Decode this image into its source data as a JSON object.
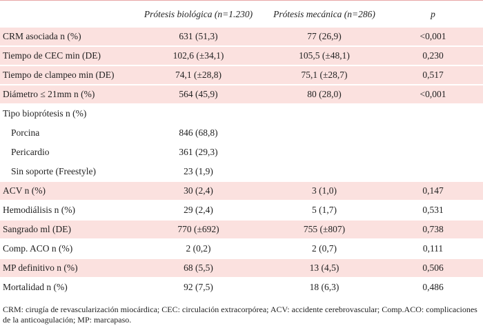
{
  "table": {
    "header": [
      "Prótesis biológica (n=1.230)",
      "Prótesis mecánica (n=286)",
      "p"
    ],
    "rows": [
      [
        "CRM asociada n (%)",
        "631 (51,3)",
        "77 (26,9)",
        "<0,001"
      ],
      [
        "Tiempo de CEC min (DE)",
        "102,6 (±34,1)",
        "105,5 (±48,1)",
        "0,230"
      ],
      [
        "Tiempo de clampeo min (DE)",
        "74,1 (±28,8)",
        "75,1 (±28,7)",
        "0,517"
      ],
      [
        "Diámetro ≤ 21mm n (%)",
        "564 (45,9)",
        "80 (28,0)",
        "<0,001"
      ],
      [
        "Tipo bioprótesis n (%)"
      ],
      [
        "Porcina",
        "846 (68,8)"
      ],
      [
        "Pericardio",
        "361 (29,3)"
      ],
      [
        "Sin soporte (Freestyle)",
        "23 (1,9)"
      ],
      [
        "ACV n (%)",
        "30 (2,4)",
        "3 (1,0)",
        "0,147"
      ],
      [
        "Hemodiálisis n (%)",
        "29 (2,4)",
        "5 (1,7)",
        "0,531"
      ],
      [
        "Sangrado ml (DE)",
        "770 (±692)",
        "755 (±807)",
        "0,738"
      ],
      [
        "Comp. ACO n (%)",
        "2 (0,2)",
        "2 (0,7)",
        "0,111"
      ],
      [
        "MP definitivo n (%)",
        "68 (5,5)",
        "13 (4,5)",
        "0,506"
      ],
      [
        "Mortalidad n (%)",
        "92 (7,5)",
        "18 (6,3)",
        "0,486"
      ]
    ],
    "footnote": "CRM: cirugía de revascularización miocárdica; CEC: circulación extracorpórea; ACV: accidente cerebrovascular; Comp.ACO: complicaciones de la anticoagulación; MP: marcapaso."
  }
}
